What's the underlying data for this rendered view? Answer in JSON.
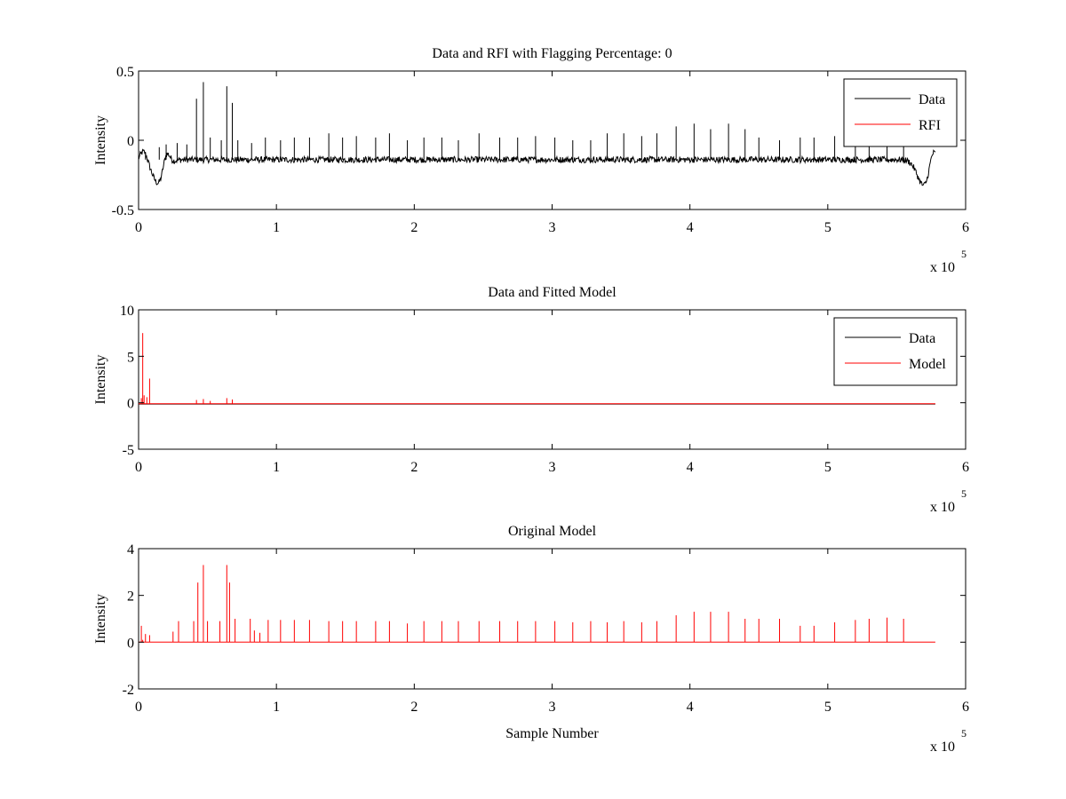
{
  "figure": {
    "background": "#ffffff",
    "data_color": "#000000",
    "rfi_color": "#ff0000"
  },
  "chart_data": [
    {
      "type": "line",
      "title": "Data and RFI with Flagging Percentage: 0",
      "xlabel": "",
      "ylabel": "Intensity",
      "xlim": [
        0,
        600000
      ],
      "ylim": [
        -0.5,
        0.5
      ],
      "x_ticks": [
        "0",
        "1",
        "2",
        "3",
        "4",
        "5",
        "6"
      ],
      "y_ticks": [
        "-0.5",
        "0",
        "0.5"
      ],
      "x_multiplier_base": "x 10",
      "x_multiplier_exp": "5",
      "legend": {
        "position": "top-right",
        "entries": [
          "Data",
          "RFI"
        ]
      },
      "series": [
        {
          "name": "Data",
          "color": "#000000",
          "baseline": -0.14,
          "edge_dips": [
            {
              "x": 15000,
              "y": -0.32
            },
            {
              "x": 570000,
              "y": -0.33
            }
          ],
          "spikes_x": [
            5000,
            15000,
            20000,
            28000,
            35000,
            42000,
            47000,
            52000,
            60000,
            64000,
            68000,
            72000,
            82000,
            92000,
            103000,
            113000,
            124000,
            138000,
            148000,
            158000,
            172000,
            182000,
            195000,
            207000,
            220000,
            232000,
            247000,
            262000,
            275000,
            288000,
            302000,
            315000,
            328000,
            340000,
            352000,
            365000,
            376000,
            390000,
            403000,
            415000,
            428000,
            440000,
            450000,
            465000,
            480000,
            490000,
            505000,
            520000,
            530000,
            543000,
            555000
          ],
          "spikes_y": [
            -0.1,
            -0.05,
            -0.03,
            -0.02,
            -0.03,
            0.3,
            0.42,
            0.02,
            0.0,
            0.39,
            0.27,
            0.0,
            -0.02,
            0.02,
            0.0,
            0.02,
            0.02,
            0.05,
            0.02,
            0.03,
            0.02,
            0.05,
            0.0,
            0.02,
            0.02,
            0.0,
            0.05,
            0.02,
            0.02,
            0.03,
            0.02,
            0.0,
            0.0,
            0.05,
            0.05,
            0.03,
            0.05,
            0.1,
            0.12,
            0.08,
            0.12,
            0.08,
            0.02,
            0.0,
            0.02,
            0.02,
            0.03,
            0.05,
            0.05,
            0.05,
            0.02
          ]
        },
        {
          "name": "RFI",
          "color": "#ff0000",
          "values": []
        }
      ]
    },
    {
      "type": "line",
      "title": "Data and Fitted Model",
      "xlabel": "",
      "ylabel": "Intensity",
      "xlim": [
        0,
        600000
      ],
      "ylim": [
        -5,
        10
      ],
      "x_ticks": [
        "0",
        "1",
        "2",
        "3",
        "4",
        "5",
        "6"
      ],
      "y_ticks": [
        "-5",
        "0",
        "5",
        "10"
      ],
      "x_multiplier_base": "x 10",
      "x_multiplier_exp": "5",
      "legend": {
        "position": "top-right",
        "entries": [
          "Data",
          "Model"
        ]
      },
      "series": [
        {
          "name": "Data",
          "color": "#000000",
          "baseline": -0.14
        },
        {
          "name": "Model",
          "color": "#ff0000",
          "baseline": -0.1,
          "spikes_x": [
            2000,
            3000,
            4000,
            6000,
            8000,
            42000,
            47000,
            52000,
            64000,
            68000
          ],
          "spikes_y": [
            0.5,
            7.5,
            0.8,
            0.6,
            2.6,
            0.3,
            0.4,
            0.2,
            0.5,
            0.35
          ]
        }
      ]
    },
    {
      "type": "line",
      "title": "Original Model",
      "xlabel": "Sample Number",
      "ylabel": "Intensity",
      "xlim": [
        0,
        600000
      ],
      "ylim": [
        -2,
        4
      ],
      "x_ticks": [
        "0",
        "1",
        "2",
        "3",
        "4",
        "5",
        "6"
      ],
      "y_ticks": [
        "-2",
        "0",
        "2",
        "4"
      ],
      "x_multiplier_base": "x 10",
      "x_multiplier_exp": "5",
      "legend": null,
      "series": [
        {
          "name": "Model",
          "color": "#ff0000",
          "baseline": 0,
          "spikes_x": [
            2000,
            3000,
            5000,
            8000,
            25000,
            29000,
            40000,
            43000,
            47000,
            50000,
            59000,
            64000,
            66000,
            70000,
            81000,
            84000,
            88000,
            94000,
            103000,
            113000,
            124000,
            138000,
            148000,
            158000,
            172000,
            182000,
            195000,
            207000,
            220000,
            232000,
            247000,
            262000,
            275000,
            288000,
            302000,
            315000,
            328000,
            340000,
            352000,
            365000,
            376000,
            390000,
            403000,
            415000,
            428000,
            440000,
            450000,
            465000,
            480000,
            490000,
            505000,
            520000,
            530000,
            543000,
            555000
          ],
          "spikes_y": [
            0.7,
            0.1,
            0.35,
            0.3,
            0.45,
            0.9,
            0.9,
            2.55,
            3.3,
            0.9,
            0.9,
            3.3,
            2.55,
            1.0,
            1.0,
            0.5,
            0.4,
            0.95,
            0.95,
            0.95,
            0.95,
            0.9,
            0.9,
            0.9,
            0.9,
            0.9,
            0.8,
            0.9,
            0.9,
            0.9,
            0.9,
            0.9,
            0.9,
            0.9,
            0.9,
            0.85,
            0.9,
            0.85,
            0.9,
            0.85,
            0.9,
            1.15,
            1.3,
            1.3,
            1.3,
            1.0,
            1.0,
            1.0,
            0.7,
            0.7,
            0.85,
            0.95,
            1.0,
            1.05,
            1.0
          ]
        }
      ]
    }
  ]
}
